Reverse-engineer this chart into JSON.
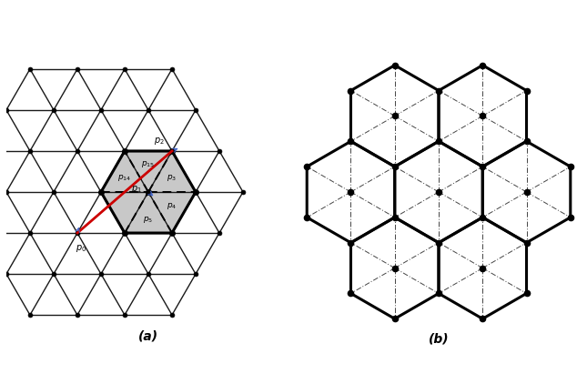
{
  "background": "#ffffff",
  "title_a": "(a)",
  "title_b": "(b)",
  "gray_fill": "#c8c8c8",
  "mesh_color": "#1a1a1a",
  "dashed_color": "#1a1a1a",
  "red_color": "#cc0000",
  "blue_color": "#4466cc",
  "hex_thick": 2.2,
  "tri_lw": 1.0,
  "dot_lw": 0.7,
  "label_fontsize": 6.5,
  "title_fontsize": 10
}
